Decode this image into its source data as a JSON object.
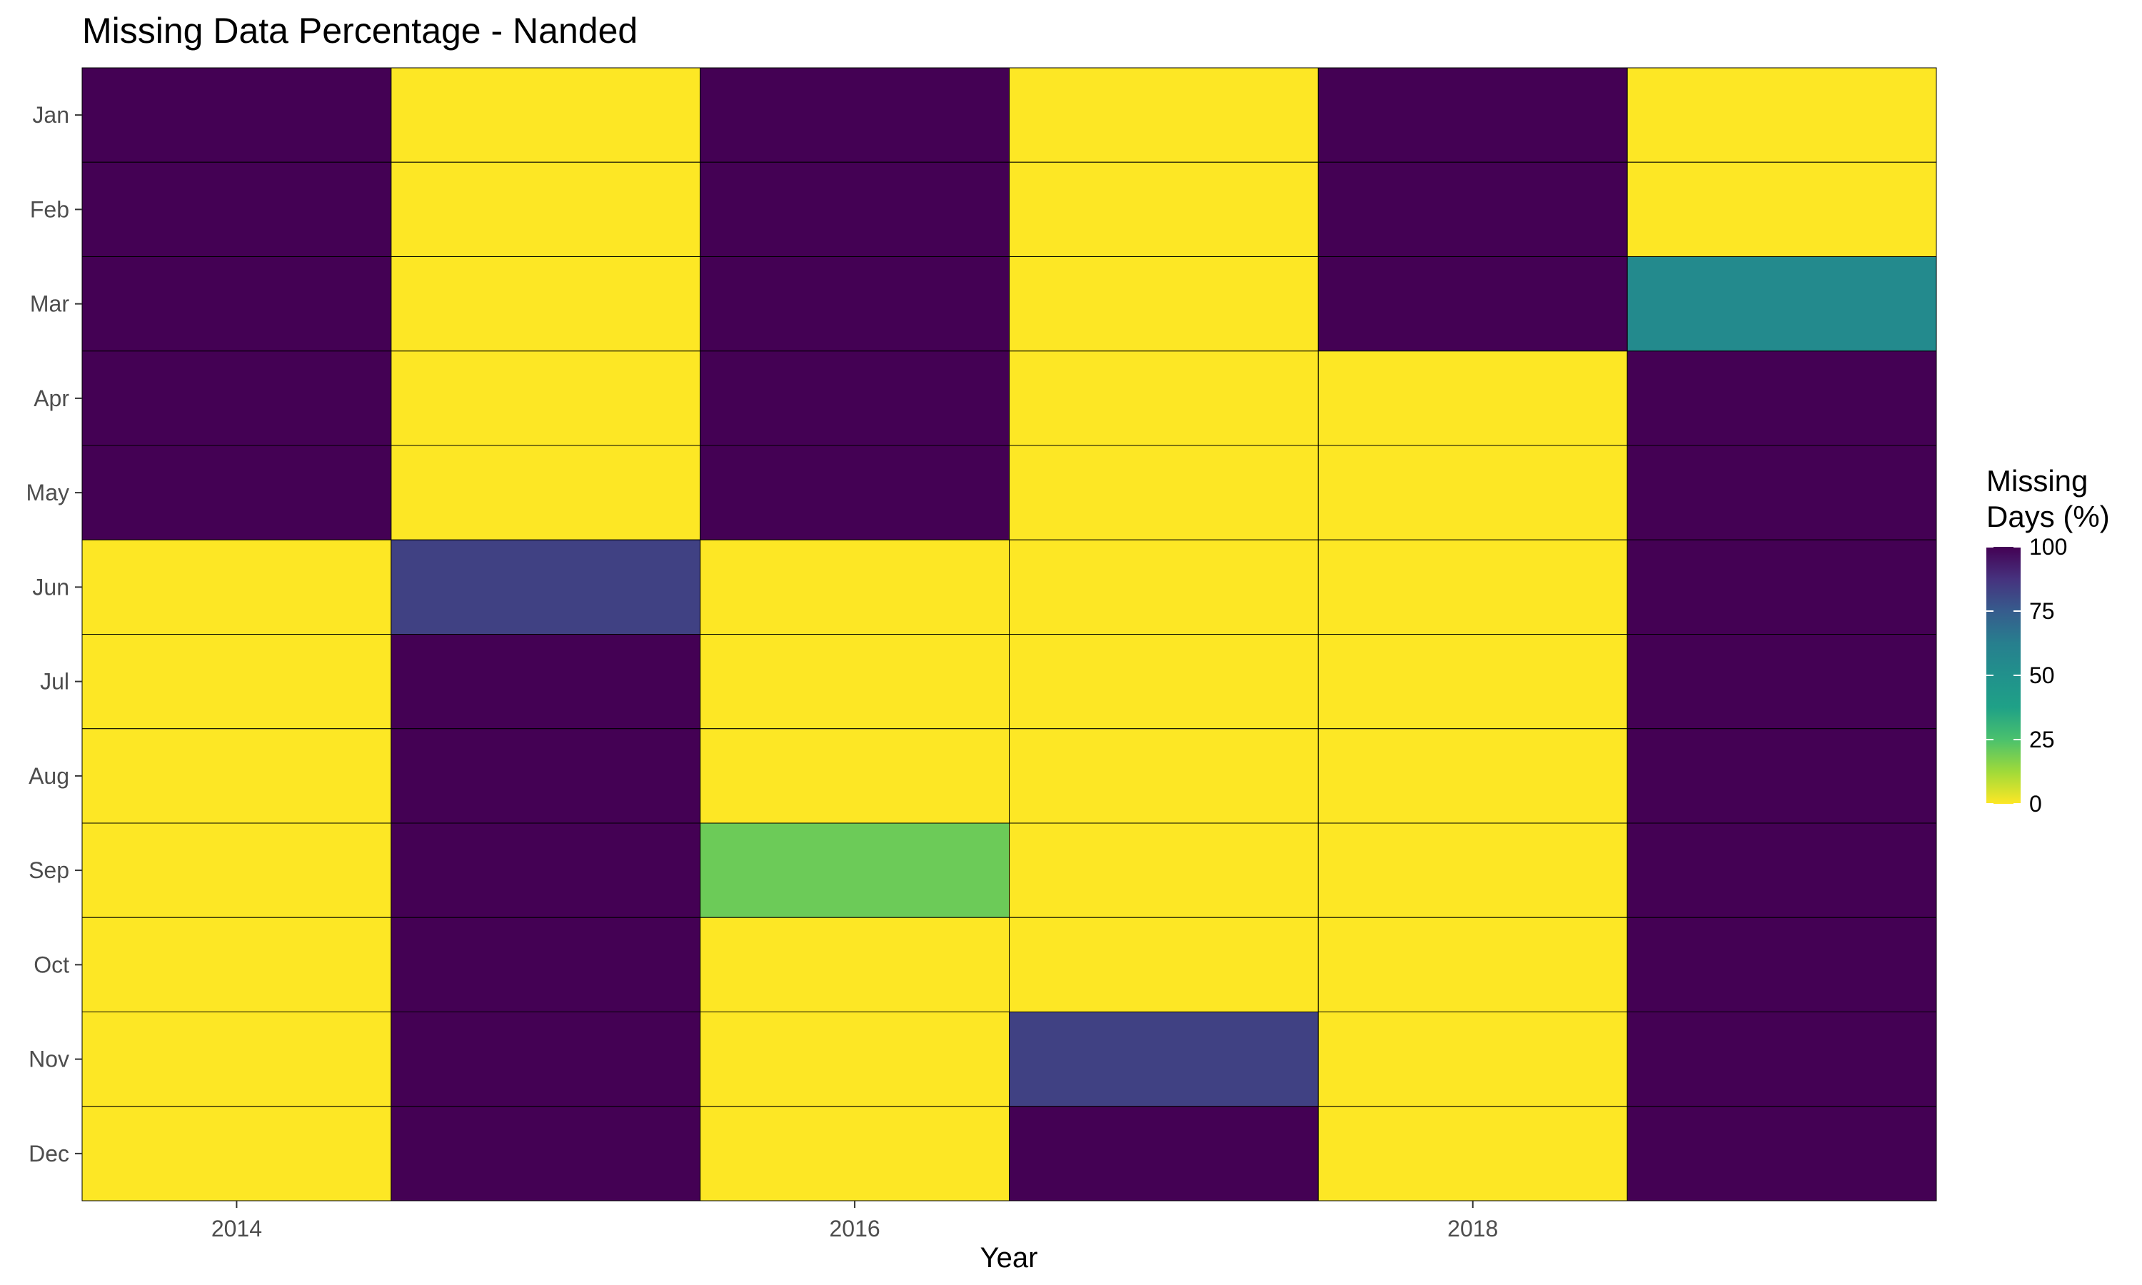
{
  "chart_data": {
    "type": "heatmap",
    "title": "Missing Data Percentage - Nanded",
    "xlabel": "Year",
    "ylabel": "",
    "x": [
      2014,
      2015,
      2016,
      2017,
      2018,
      2019
    ],
    "x_tick_labels": [
      "2014",
      "2016",
      "2018"
    ],
    "x_tick_values": [
      2014,
      2016,
      2018
    ],
    "y": [
      "Jan",
      "Feb",
      "Mar",
      "Apr",
      "May",
      "Jun",
      "Jul",
      "Aug",
      "Sep",
      "Oct",
      "Nov",
      "Dec"
    ],
    "values": [
      [
        100,
        0,
        100,
        0,
        100,
        0
      ],
      [
        100,
        0,
        100,
        0,
        100,
        0
      ],
      [
        100,
        0,
        100,
        0,
        100,
        55
      ],
      [
        100,
        0,
        100,
        0,
        0,
        100
      ],
      [
        100,
        0,
        100,
        0,
        0,
        100
      ],
      [
        0,
        83,
        0,
        0,
        0,
        100
      ],
      [
        0,
        100,
        0,
        0,
        0,
        100
      ],
      [
        0,
        100,
        0,
        0,
        0,
        100
      ],
      [
        0,
        100,
        20,
        0,
        0,
        100
      ],
      [
        0,
        100,
        0,
        0,
        0,
        100
      ],
      [
        0,
        100,
        0,
        83,
        0,
        100
      ],
      [
        0,
        100,
        0,
        100,
        0,
        100
      ]
    ],
    "value_range": [
      0,
      100
    ],
    "colorscale": "viridis-reversed",
    "legend": {
      "title_lines": [
        "Missing",
        "Days (%)"
      ],
      "ticks": [
        100,
        75,
        50,
        25,
        0
      ],
      "placement": "right"
    },
    "grid": false,
    "colors": {
      "low": "#fde725",
      "high": "#440154",
      "tile_border": "#000000"
    }
  }
}
